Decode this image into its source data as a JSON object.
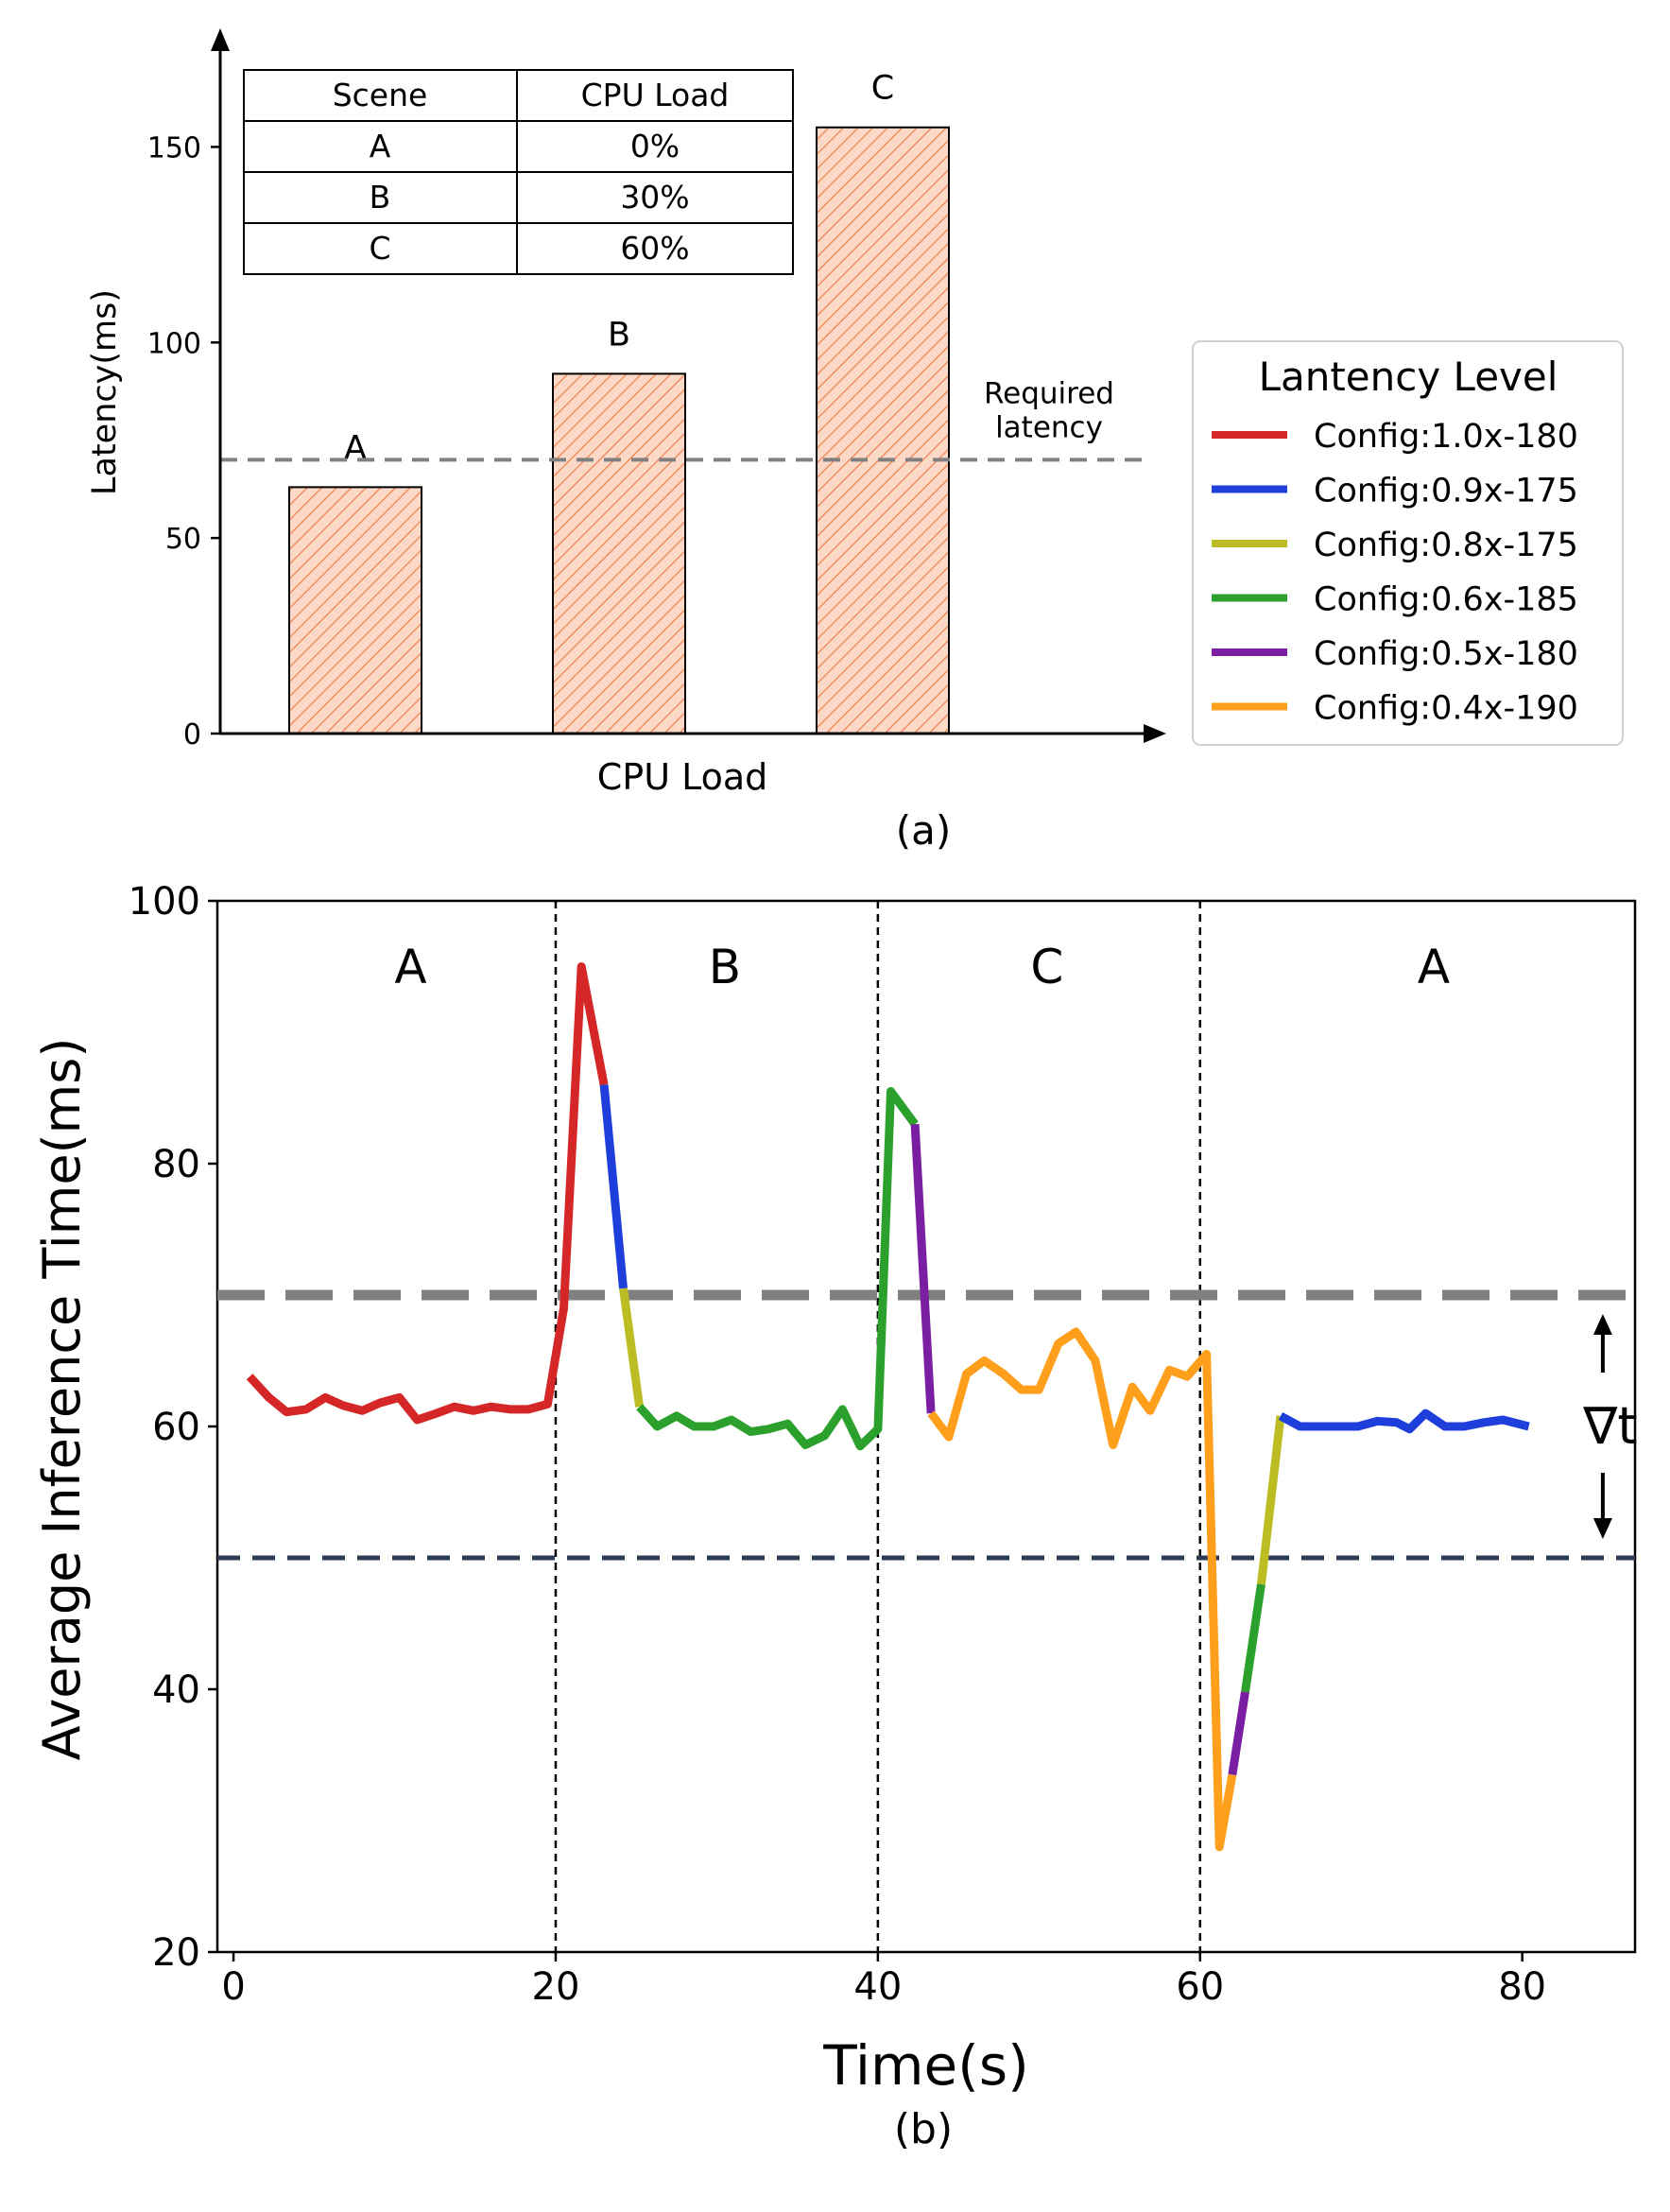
{
  "chart_data": [
    {
      "type": "bar",
      "panel_label": "(a)",
      "xlabel": "CPU Load",
      "ylabel": "Latency(ms)",
      "ylim": [
        0,
        175
      ],
      "yticks": [
        0,
        50,
        100,
        150
      ],
      "categories": [
        "A",
        "B",
        "C"
      ],
      "values": [
        63,
        92,
        155
      ],
      "bar_color": "#fbd9c6",
      "hatch_color": "#f07e4c",
      "reference_line": {
        "value": 70,
        "label_line1": "Required",
        "label_line2": "latency",
        "color": "#808080"
      },
      "table": {
        "headers": [
          "Scene",
          "CPU Load"
        ],
        "rows": [
          [
            "A",
            "0%"
          ],
          [
            "B",
            "30%"
          ],
          [
            "C",
            "60%"
          ]
        ]
      }
    },
    {
      "type": "line",
      "panel_label": "(b)",
      "xlabel": "Time(s)",
      "ylabel": "Average Inference Time(ms)",
      "xlim": [
        -1,
        87
      ],
      "ylim": [
        20,
        100
      ],
      "xticks": [
        0,
        20,
        40,
        60,
        80
      ],
      "yticks": [
        20,
        40,
        60,
        80,
        100
      ],
      "scene_boundaries": [
        20,
        40,
        60
      ],
      "scene_labels": [
        {
          "x": 11,
          "text": "A"
        },
        {
          "x": 30.5,
          "text": "B"
        },
        {
          "x": 50.5,
          "text": "C"
        },
        {
          "x": 74.5,
          "text": "A"
        }
      ],
      "upper_threshold": {
        "value": 70,
        "color": "#808080"
      },
      "lower_threshold": {
        "value": 50,
        "color": "#2b3d52"
      },
      "gap_annotation": {
        "text": "∇t",
        "x": 85,
        "y_top": 70,
        "y_bottom": 50
      },
      "legend": {
        "title": "Lantency Level",
        "position": "right of panel (a)",
        "entries": [
          {
            "name": "Config:1.0x-180",
            "color": "#d62728"
          },
          {
            "name": "Config:0.9x-175",
            "color": "#1f3fdc"
          },
          {
            "name": "Config:0.8x-175",
            "color": "#bcbd22"
          },
          {
            "name": "Config:0.6x-185",
            "color": "#2ca02c"
          },
          {
            "name": "Config:0.5x-180",
            "color": "#7b1fa2"
          },
          {
            "name": "Config:0.4x-190",
            "color": "#ff9f1c"
          }
        ]
      },
      "series": [
        {
          "config": "Config:1.0x-180",
          "color": "#d62728",
          "points": [
            [
              1.0,
              63.8
            ],
            [
              2.2,
              62.2
            ],
            [
              3.3,
              61.1
            ],
            [
              4.5,
              61.3
            ],
            [
              5.7,
              62.2
            ],
            [
              6.8,
              61.6
            ],
            [
              8.0,
              61.2
            ],
            [
              9.1,
              61.8
            ],
            [
              10.3,
              62.2
            ],
            [
              11.4,
              60.5
            ],
            [
              12.6,
              61.0
            ],
            [
              13.7,
              61.5
            ],
            [
              14.9,
              61.2
            ],
            [
              16.0,
              61.5
            ],
            [
              17.2,
              61.3
            ],
            [
              18.3,
              61.3
            ],
            [
              19.5,
              61.7
            ],
            [
              20.5,
              69.0
            ],
            [
              21.6,
              95.0
            ],
            [
              23.0,
              86.0
            ]
          ]
        },
        {
          "config": "Config:0.9x-175",
          "color": "#1f3fdc",
          "points": [
            [
              23.0,
              86.0
            ],
            [
              24.2,
              70.5
            ]
          ]
        },
        {
          "config": "Config:0.8x-175",
          "color": "#bcbd22",
          "points": [
            [
              24.2,
              70.5
            ],
            [
              25.2,
              61.5
            ]
          ]
        },
        {
          "config": "Config:0.6x-185",
          "color": "#2ca02c",
          "points": [
            [
              25.2,
              61.5
            ],
            [
              26.3,
              60.0
            ],
            [
              27.5,
              60.8
            ],
            [
              28.6,
              60.0
            ],
            [
              29.8,
              60.0
            ],
            [
              30.9,
              60.5
            ],
            [
              32.1,
              59.6
            ],
            [
              33.2,
              59.8
            ],
            [
              34.4,
              60.2
            ],
            [
              35.5,
              58.6
            ],
            [
              36.7,
              59.3
            ],
            [
              37.8,
              61.3
            ],
            [
              38.9,
              58.5
            ],
            [
              40.0,
              59.8
            ],
            [
              40.8,
              85.5
            ],
            [
              42.3,
              83.0
            ]
          ]
        },
        {
          "config": "Config:0.5x-180",
          "color": "#7b1fa2",
          "points": [
            [
              42.3,
              83.0
            ],
            [
              43.3,
              61.0
            ]
          ]
        },
        {
          "config": "Config:0.4x-190",
          "color": "#ff9f1c",
          "points": [
            [
              43.3,
              61.0
            ],
            [
              44.4,
              59.2
            ],
            [
              45.5,
              64.0
            ],
            [
              46.6,
              65.0
            ],
            [
              47.8,
              64.0
            ],
            [
              48.9,
              62.8
            ],
            [
              50.0,
              62.8
            ],
            [
              51.2,
              66.3
            ],
            [
              52.3,
              67.2
            ],
            [
              53.5,
              65.0
            ],
            [
              54.6,
              58.6
            ],
            [
              55.8,
              63.0
            ],
            [
              56.9,
              61.2
            ],
            [
              58.1,
              64.3
            ],
            [
              59.2,
              63.8
            ],
            [
              60.4,
              65.5
            ],
            [
              61.2,
              28.0
            ],
            [
              62.0,
              33.5
            ]
          ]
        },
        {
          "config": "Config:0.5x-180",
          "color": "#7b1fa2",
          "points": [
            [
              62.0,
              33.5
            ],
            [
              62.8,
              39.8
            ]
          ]
        },
        {
          "config": "Config:0.6x-185",
          "color": "#2ca02c",
          "points": [
            [
              62.8,
              39.8
            ],
            [
              63.8,
              48.0
            ]
          ]
        },
        {
          "config": "Config:0.8x-175",
          "color": "#bcbd22",
          "points": [
            [
              63.8,
              48.0
            ],
            [
              65.0,
              60.8
            ]
          ]
        },
        {
          "config": "Config:0.9x-175",
          "color": "#1f3fdc",
          "points": [
            [
              65.0,
              60.8
            ],
            [
              66.2,
              60.0
            ],
            [
              67.4,
              60.0
            ],
            [
              68.6,
              60.0
            ],
            [
              69.8,
              60.0
            ],
            [
              71.0,
              60.4
            ],
            [
              72.2,
              60.3
            ],
            [
              73.0,
              59.8
            ],
            [
              74.0,
              61.0
            ],
            [
              75.2,
              60.0
            ],
            [
              76.4,
              60.0
            ],
            [
              77.6,
              60.3
            ],
            [
              78.8,
              60.5
            ],
            [
              80.4,
              60.0
            ]
          ]
        }
      ]
    }
  ]
}
